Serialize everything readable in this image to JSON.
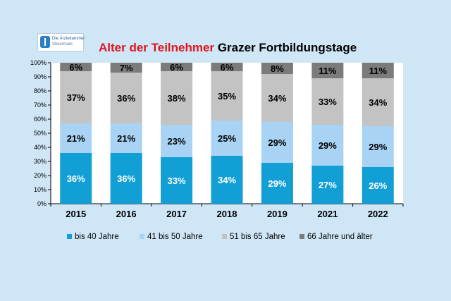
{
  "logo": {
    "line1": "Die Ärztekammer",
    "line2": "Steiermark"
  },
  "title": {
    "part1": "Alter der Teilnehmer",
    "part2": "Grazer Fortbildungstage"
  },
  "chart_data": {
    "type": "bar",
    "stacked": true,
    "percent": true,
    "title": "Alter der Teilnehmer Grazer Fortbildungstage",
    "categories": [
      "2015",
      "2016",
      "2017",
      "2018",
      "2019",
      "2021",
      "2022"
    ],
    "y_ticks": [
      "0%",
      "10%",
      "20%",
      "30%",
      "40%",
      "50%",
      "60%",
      "70%",
      "80%",
      "90%",
      "100%"
    ],
    "ylim": [
      0,
      100
    ],
    "series": [
      {
        "name": "bis 40 Jahre",
        "color": "#129fd6",
        "label_color": "#ffffff",
        "values": [
          36,
          36,
          33,
          34,
          29,
          27,
          26
        ],
        "labels": [
          "36%",
          "36%",
          "33%",
          "34%",
          "29%",
          "27%",
          "26%"
        ]
      },
      {
        "name": "41 bis 50 Jahre",
        "color": "#a9d3f4",
        "label_color": "#000000",
        "values": [
          21,
          21,
          23,
          25,
          29,
          29,
          29
        ],
        "labels": [
          "21%",
          "21%",
          "23%",
          "25%",
          "29%",
          "29%",
          "29%"
        ]
      },
      {
        "name": "51 bis 65 Jahre",
        "color": "#c3c3c3",
        "label_color": "#000000",
        "values": [
          37,
          36,
          38,
          35,
          34,
          33,
          34
        ],
        "labels": [
          "37%",
          "36%",
          "38%",
          "35%",
          "34%",
          "33%",
          "34%"
        ]
      },
      {
        "name": "66 Jahre und älter",
        "color": "#7b7b7b",
        "label_color": "#000000",
        "values": [
          6,
          7,
          6,
          6,
          8,
          11,
          11
        ],
        "labels": [
          "6%",
          "7%",
          "6%",
          "6%",
          "8%",
          "11%",
          "11%"
        ]
      }
    ],
    "legend_position": "bottom",
    "grid": false
  }
}
